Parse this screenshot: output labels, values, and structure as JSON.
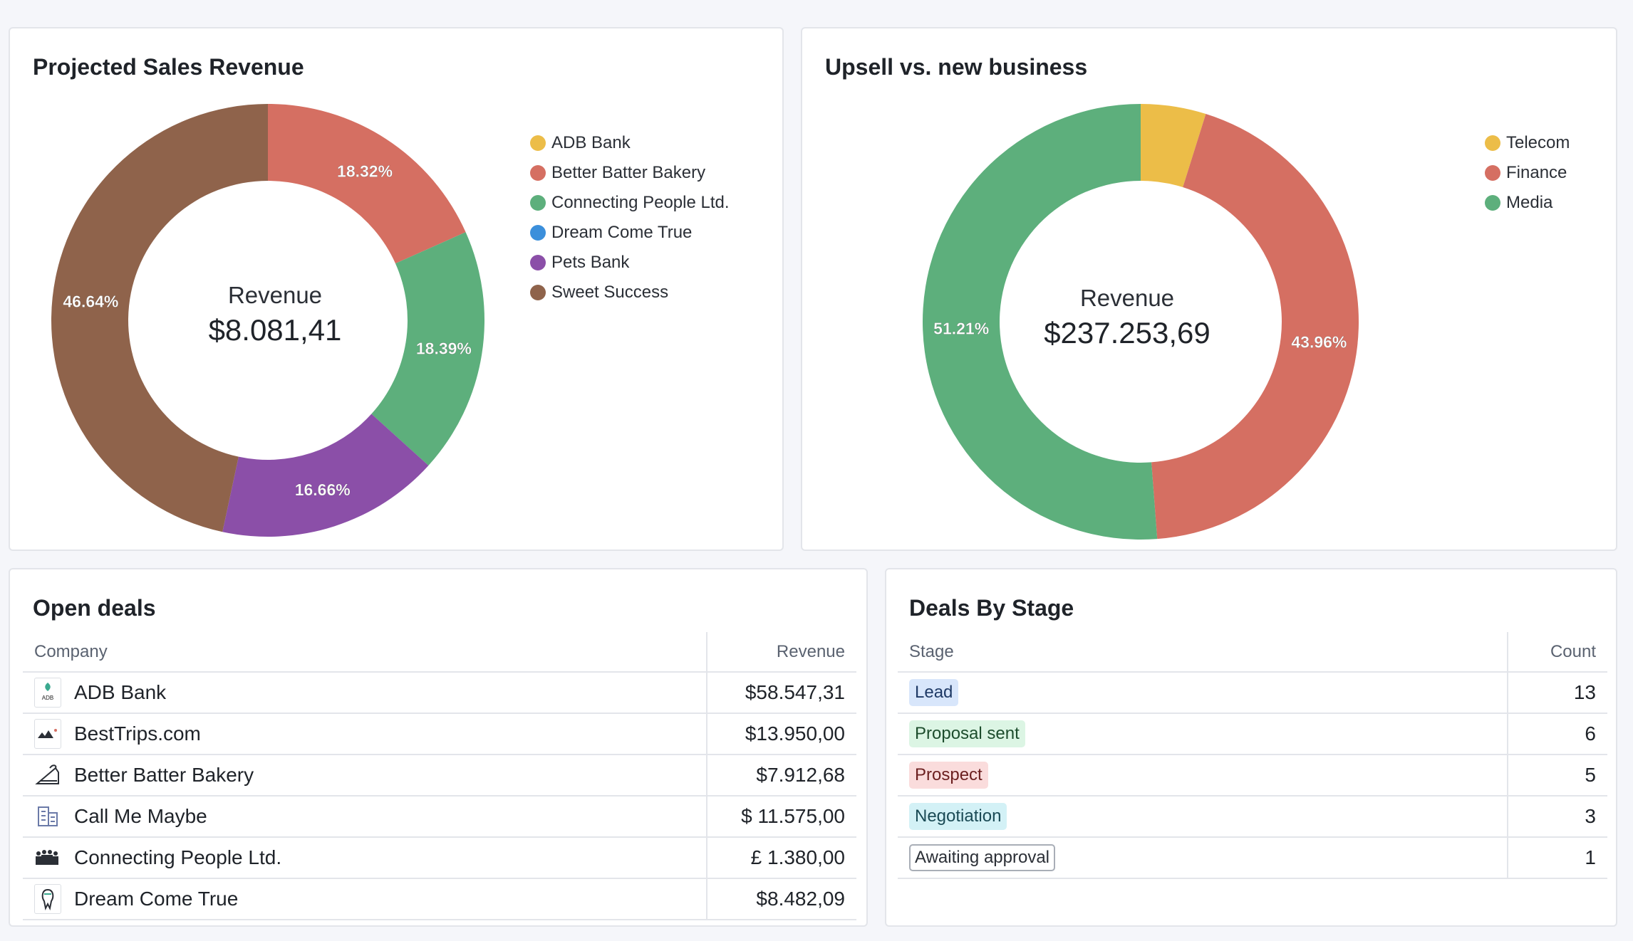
{
  "projected_sales": {
    "title": "Projected Sales Revenue",
    "center_title": "Revenue",
    "center_value": "$8.081,41",
    "legend": [
      {
        "label": "ADB Bank",
        "color": "#ecbd48"
      },
      {
        "label": "Better Batter Bakery",
        "color": "#d56f62"
      },
      {
        "label": "Connecting People Ltd.",
        "color": "#5daf7c"
      },
      {
        "label": "Dream Come True",
        "color": "#3b8fdb"
      },
      {
        "label": "Pets Bank",
        "color": "#8b4fa8"
      },
      {
        "label": "Sweet Success",
        "color": "#8f634b"
      }
    ]
  },
  "upsell": {
    "title": "Upsell vs. new business",
    "center_title": "Revenue",
    "center_value": "$237.253,69",
    "legend": [
      {
        "label": "Telecom",
        "color": "#ecbd48"
      },
      {
        "label": "Finance",
        "color": "#d56f62"
      },
      {
        "label": "Media",
        "color": "#5daf7c"
      }
    ]
  },
  "chart_data": [
    {
      "type": "pie",
      "title": "Projected Sales Revenue",
      "categories": [
        "ADB Bank",
        "Better Batter Bakery",
        "Connecting People Ltd.",
        "Dream Come True",
        "Pets Bank",
        "Sweet Success"
      ],
      "values": [
        0,
        18.32,
        18.39,
        0,
        16.66,
        46.64
      ],
      "value_labels": [
        "",
        "18.32%",
        "18.39%",
        "",
        "16.66%",
        "46.64%"
      ],
      "colors": [
        "#ecbd48",
        "#d56f62",
        "#5daf7c",
        "#3b8fdb",
        "#8b4fa8",
        "#8f634b"
      ],
      "legend_position": "right"
    },
    {
      "type": "pie",
      "title": "Upsell vs. new business",
      "categories": [
        "Telecom",
        "Finance",
        "Media"
      ],
      "values": [
        4.83,
        43.96,
        51.21
      ],
      "value_labels": [
        "",
        "43.96%",
        "51.21%"
      ],
      "colors": [
        "#ecbd48",
        "#d56f62",
        "#5daf7c"
      ],
      "legend_position": "top-right"
    }
  ],
  "open_deals": {
    "title": "Open deals",
    "columns": {
      "company": "Company",
      "revenue": "Revenue"
    },
    "rows": [
      {
        "company": "ADB Bank",
        "revenue": "$58.547,31"
      },
      {
        "company": "BestTrips.com",
        "revenue": "$13.950,00"
      },
      {
        "company": "Better Batter Bakery",
        "revenue": "$7.912,68"
      },
      {
        "company": "Call Me Maybe",
        "revenue": "$ 11.575,00"
      },
      {
        "company": "Connecting People Ltd.",
        "revenue": "£ 1.380,00"
      },
      {
        "company": "Dream Come True",
        "revenue": "$8.482,09"
      }
    ]
  },
  "deals_by_stage": {
    "title": "Deals By Stage",
    "columns": {
      "stage": "Stage",
      "count": "Count"
    },
    "rows": [
      {
        "stage": "Lead",
        "count": "13"
      },
      {
        "stage": "Proposal sent",
        "count": "6"
      },
      {
        "stage": "Prospect",
        "count": "5"
      },
      {
        "stage": "Negotiation",
        "count": "3"
      },
      {
        "stage": "Awaiting approval",
        "count": "1"
      }
    ]
  }
}
